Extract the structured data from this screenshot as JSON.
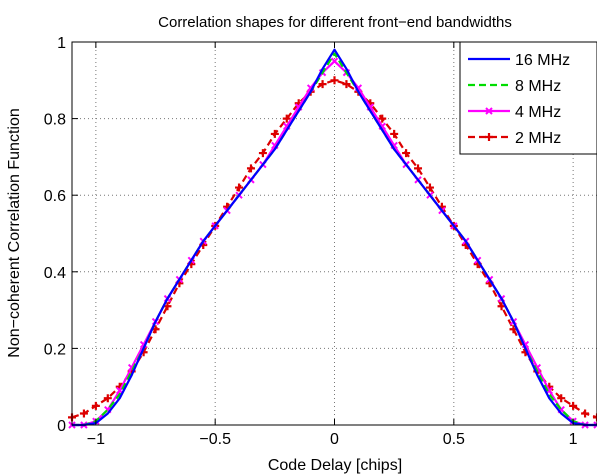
{
  "chart_data": {
    "type": "line",
    "title": "Correlation shapes for different front−end bandwidths",
    "xlabel": "Code Delay [chips]",
    "ylabel": "Non−coherent Correlation Function",
    "xlim": [
      -1.1,
      1.1
    ],
    "ylim": [
      0,
      1
    ],
    "x_ticks": [
      -1,
      -0.5,
      0,
      0.5,
      1
    ],
    "x_tick_labels": [
      "−1",
      "−0.5",
      "0",
      "0.5",
      "1"
    ],
    "y_ticks": [
      0,
      0.2,
      0.4,
      0.6,
      0.8,
      1
    ],
    "y_tick_labels": [
      "0",
      "0.2",
      "0.4",
      "0.6",
      "0.8",
      "1"
    ],
    "grid": true,
    "legend_position": "top-right",
    "x": [
      -1.1,
      -1.05,
      -1.0,
      -0.95,
      -0.9,
      -0.85,
      -0.8,
      -0.75,
      -0.7,
      -0.65,
      -0.6,
      -0.55,
      -0.5,
      -0.45,
      -0.4,
      -0.35,
      -0.3,
      -0.25,
      -0.2,
      -0.15,
      -0.1,
      -0.05,
      0.0,
      0.05,
      0.1,
      0.15,
      0.2,
      0.25,
      0.3,
      0.35,
      0.4,
      0.45,
      0.5,
      0.55,
      0.6,
      0.65,
      0.7,
      0.75,
      0.8,
      0.85,
      0.9,
      0.95,
      1.0,
      1.05,
      1.1
    ],
    "series": [
      {
        "name": "16 MHz",
        "color": "#0000ff",
        "style": "solid",
        "marker": "none",
        "values": [
          0.0,
          0.0,
          0.005,
          0.03,
          0.07,
          0.13,
          0.2,
          0.27,
          0.33,
          0.38,
          0.43,
          0.48,
          0.52,
          0.56,
          0.6,
          0.64,
          0.68,
          0.72,
          0.77,
          0.82,
          0.87,
          0.93,
          0.98,
          0.93,
          0.87,
          0.82,
          0.77,
          0.72,
          0.68,
          0.64,
          0.6,
          0.56,
          0.52,
          0.48,
          0.43,
          0.38,
          0.33,
          0.27,
          0.2,
          0.13,
          0.07,
          0.03,
          0.005,
          0.0,
          0.0
        ]
      },
      {
        "name": "8 MHz",
        "color": "#00dd00",
        "style": "dashed",
        "marker": "none",
        "values": [
          0.0,
          0.0,
          0.01,
          0.04,
          0.08,
          0.14,
          0.2,
          0.27,
          0.33,
          0.38,
          0.43,
          0.48,
          0.52,
          0.56,
          0.6,
          0.64,
          0.68,
          0.72,
          0.77,
          0.82,
          0.87,
          0.92,
          0.97,
          0.92,
          0.87,
          0.82,
          0.77,
          0.72,
          0.68,
          0.64,
          0.6,
          0.56,
          0.52,
          0.48,
          0.43,
          0.38,
          0.33,
          0.27,
          0.2,
          0.14,
          0.08,
          0.04,
          0.01,
          0.0,
          0.0
        ]
      },
      {
        "name": "4 MHz",
        "color": "#ff00ff",
        "style": "solid",
        "marker": "x",
        "values": [
          0.0,
          0.0,
          0.01,
          0.04,
          0.09,
          0.15,
          0.21,
          0.27,
          0.33,
          0.38,
          0.43,
          0.48,
          0.52,
          0.56,
          0.6,
          0.64,
          0.68,
          0.73,
          0.78,
          0.83,
          0.88,
          0.92,
          0.95,
          0.92,
          0.88,
          0.83,
          0.78,
          0.73,
          0.68,
          0.64,
          0.6,
          0.56,
          0.52,
          0.48,
          0.43,
          0.38,
          0.33,
          0.27,
          0.21,
          0.15,
          0.09,
          0.04,
          0.01,
          0.0,
          0.0
        ]
      },
      {
        "name": "2 MHz",
        "color": "#dd0000",
        "style": "dashed",
        "marker": "+",
        "values": [
          0.02,
          0.03,
          0.05,
          0.07,
          0.1,
          0.14,
          0.19,
          0.25,
          0.31,
          0.37,
          0.42,
          0.47,
          0.52,
          0.57,
          0.62,
          0.67,
          0.71,
          0.76,
          0.8,
          0.84,
          0.87,
          0.89,
          0.9,
          0.89,
          0.87,
          0.84,
          0.8,
          0.76,
          0.71,
          0.67,
          0.62,
          0.57,
          0.52,
          0.47,
          0.42,
          0.37,
          0.31,
          0.25,
          0.19,
          0.14,
          0.1,
          0.07,
          0.05,
          0.03,
          0.02
        ]
      }
    ]
  }
}
